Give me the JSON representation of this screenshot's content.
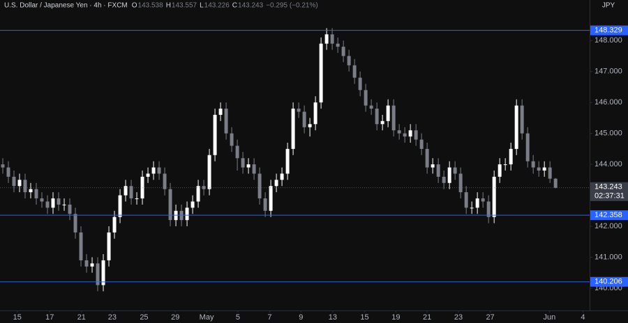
{
  "chart_data": {
    "type": "candlestick",
    "title": "U.S. Dollar / Japanese Yen · 4h · FXCM",
    "ohlc_labels": [
      "O",
      "H",
      "L",
      "C"
    ],
    "change": "−0.295 (−0.21%)",
    "currency": "JPY",
    "countdown": "02:37:31",
    "up_color": "#ffffff",
    "down_color": "#7b7e87",
    "level_color": "#2962ff",
    "last_color": "#3a3e48",
    "levels": [
      148.329,
      142.358,
      140.206
    ],
    "xlim": [
      -0.5,
      105.1
    ],
    "xticks": [
      {
        "value": 2.6,
        "label": "15"
      },
      {
        "value": 8.4,
        "label": "17"
      },
      {
        "value": 14.1,
        "label": "21"
      },
      {
        "value": 19.6,
        "label": "23"
      },
      {
        "value": 25.3,
        "label": "25"
      },
      {
        "value": 30.9,
        "label": "29"
      },
      {
        "value": 36.5,
        "label": "May"
      },
      {
        "value": 42.1,
        "label": "5"
      },
      {
        "value": 47.8,
        "label": "7"
      },
      {
        "value": 53.4,
        "label": "9"
      },
      {
        "value": 59.1,
        "label": "13"
      },
      {
        "value": 64.8,
        "label": "15"
      },
      {
        "value": 70.4,
        "label": "19"
      },
      {
        "value": 76,
        "label": "21"
      },
      {
        "value": 81.6,
        "label": "23"
      },
      {
        "value": 87.3,
        "label": "27"
      },
      {
        "value": 97.9,
        "label": "Jun"
      },
      {
        "value": 103.9,
        "label": "4"
      }
    ],
    "ylim": [
      139.28,
      149.31
    ],
    "yticks": [
      {
        "value": 140,
        "label": "140.000"
      },
      {
        "value": 141,
        "label": "141.000"
      },
      {
        "value": 142,
        "label": "142.000"
      },
      {
        "value": 143,
        "label": "143.000"
      },
      {
        "value": 144,
        "label": "144.000"
      },
      {
        "value": 145,
        "label": "145.000"
      },
      {
        "value": 146,
        "label": "146.000"
      },
      {
        "value": 147,
        "label": "147.000"
      },
      {
        "value": 148,
        "label": "148.000"
      }
    ],
    "open": [
      144.0,
      143.9,
      143.6,
      143.3,
      143.5,
      143.1,
      143.2,
      142.9,
      142.8,
      142.6,
      142.9,
      142.7,
      142.7,
      142.4,
      141.8,
      140.9,
      140.7,
      140.8,
      140.1,
      140.9,
      141.8,
      142.3,
      143.0,
      143.3,
      142.9,
      142.9,
      143.6,
      143.7,
      143.9,
      143.7,
      143.2,
      142.2,
      142.5,
      142.2,
      142.6,
      142.8,
      143.3,
      143.2,
      144.3,
      145.6,
      145.8,
      145.0,
      144.6,
      144.2,
      143.9,
      144.0,
      143.7,
      142.9,
      142.5,
      143.3,
      143.5,
      143.7,
      144.5,
      145.8,
      145.7,
      145.2,
      145.3,
      146.0,
      147.9,
      148.2,
      147.9,
      147.8,
      147.5,
      147.2,
      146.8,
      146.4,
      145.9,
      145.8,
      145.3,
      145.4,
      145.9,
      145.1,
      145.0,
      144.9,
      145.1,
      144.8,
      144.5,
      143.9,
      144.0,
      143.6,
      143.4,
      143.9,
      143.7,
      143.1,
      142.6,
      142.6,
      142.9,
      142.8,
      142.3,
      143.6,
      144.0,
      144.0,
      144.5,
      145.9,
      145.0,
      144.1,
      143.9,
      143.8,
      143.9,
      143.538
    ],
    "high": [
      144.2,
      144.1,
      143.8,
      143.7,
      143.7,
      143.4,
      143.4,
      143.1,
      143.0,
      143.1,
      143.1,
      142.9,
      142.9,
      142.6,
      142.0,
      141.1,
      141.0,
      141.0,
      141.1,
      142.0,
      142.5,
      143.2,
      143.5,
      143.5,
      143.1,
      143.8,
      143.9,
      144.1,
      144.1,
      143.9,
      143.4,
      142.7,
      142.7,
      142.8,
      143.0,
      143.5,
      143.5,
      144.5,
      145.8,
      146.0,
      146.0,
      145.2,
      144.8,
      144.4,
      144.2,
      144.2,
      143.9,
      143.1,
      143.5,
      143.7,
      143.9,
      144.7,
      146.0,
      146.0,
      145.9,
      145.5,
      146.2,
      148.1,
      148.4,
      148.4,
      148.1,
      148.0,
      147.7,
      147.4,
      147.0,
      146.6,
      146.1,
      146.0,
      145.6,
      146.1,
      146.1,
      145.3,
      145.2,
      145.3,
      145.3,
      145.0,
      144.7,
      144.2,
      144.2,
      143.8,
      144.1,
      144.1,
      143.9,
      143.3,
      142.8,
      143.1,
      143.1,
      143.0,
      143.8,
      144.2,
      144.2,
      144.7,
      146.1,
      146.1,
      145.2,
      144.3,
      144.1,
      144.1,
      144.1,
      143.557
    ],
    "low": [
      143.7,
      143.4,
      143.1,
      143.1,
      142.9,
      142.9,
      142.7,
      142.6,
      142.4,
      142.4,
      142.5,
      142.5,
      142.2,
      141.6,
      140.7,
      140.5,
      140.5,
      139.9,
      139.9,
      140.7,
      141.6,
      142.1,
      142.8,
      142.7,
      142.7,
      142.7,
      143.4,
      143.5,
      143.5,
      143.0,
      142.0,
      142.0,
      142.0,
      142.0,
      142.4,
      142.6,
      143.0,
      143.0,
      144.1,
      145.4,
      144.8,
      144.4,
      143.8,
      143.7,
      143.7,
      143.5,
      142.7,
      142.3,
      142.3,
      143.1,
      143.3,
      143.5,
      144.3,
      145.5,
      145.0,
      144.9,
      145.1,
      145.8,
      147.7,
      147.7,
      147.6,
      147.3,
      147.0,
      146.6,
      146.2,
      145.7,
      145.6,
      145.1,
      145.1,
      145.2,
      144.9,
      144.8,
      144.7,
      144.7,
      144.6,
      144.3,
      143.7,
      143.7,
      143.4,
      143.2,
      143.2,
      143.5,
      142.9,
      142.4,
      142.4,
      142.4,
      142.6,
      142.1,
      142.1,
      143.4,
      143.8,
      143.8,
      144.3,
      144.8,
      143.9,
      143.7,
      143.6,
      143.6,
      143.4,
      143.226
    ],
    "close": [
      143.9,
      143.6,
      143.3,
      143.5,
      143.1,
      143.2,
      142.9,
      142.8,
      142.6,
      142.9,
      142.7,
      142.7,
      142.4,
      141.8,
      140.9,
      140.7,
      140.8,
      140.1,
      140.9,
      141.8,
      142.3,
      143.0,
      143.3,
      142.9,
      142.9,
      143.6,
      143.7,
      143.9,
      143.7,
      143.2,
      142.2,
      142.5,
      142.2,
      142.6,
      142.8,
      143.3,
      143.2,
      144.3,
      145.6,
      145.8,
      145.0,
      144.6,
      144.2,
      143.9,
      144.0,
      143.7,
      142.9,
      142.5,
      143.3,
      143.5,
      143.7,
      144.5,
      145.8,
      145.7,
      145.2,
      145.3,
      146.0,
      147.9,
      148.2,
      147.9,
      147.8,
      147.5,
      147.2,
      146.8,
      146.4,
      145.9,
      145.8,
      145.3,
      145.4,
      145.9,
      145.1,
      145.0,
      144.9,
      145.1,
      144.8,
      144.5,
      143.9,
      144.0,
      143.6,
      143.4,
      143.9,
      143.7,
      143.1,
      142.6,
      142.6,
      142.9,
      142.8,
      142.3,
      143.6,
      144.0,
      144.0,
      144.5,
      145.9,
      145.0,
      144.1,
      143.9,
      143.8,
      143.9,
      143.538,
      143.243
    ]
  }
}
